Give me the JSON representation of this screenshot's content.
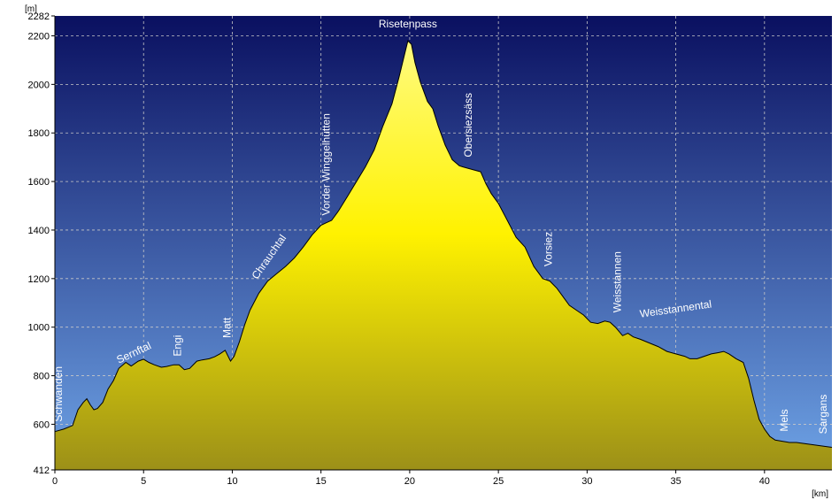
{
  "chart_data": {
    "type": "area",
    "title": "",
    "xlabel": "[km]",
    "ylabel": "[m]",
    "xlim": [
      0,
      43.8
    ],
    "ylim": [
      412,
      2282
    ],
    "x_ticks": [
      0,
      5,
      10,
      15,
      20,
      25,
      30,
      35,
      40
    ],
    "y_ticks": [
      412,
      600,
      800,
      1000,
      1200,
      1400,
      1600,
      1800,
      2000,
      2200,
      2282
    ],
    "grid": true,
    "colors": {
      "sky_top": "#0a1060",
      "sky_bottom": "#6ea3e6",
      "fill_top": "#fffb80",
      "fill_mid": "#fff200",
      "fill_bottom": "#9c9018",
      "line": "#000000"
    },
    "series": [
      {
        "x": [
          0,
          0.5,
          1.0,
          1.3,
          1.6,
          1.8,
          2.0,
          2.2,
          2.4,
          2.7,
          3.0,
          3.3,
          3.6,
          4.0,
          4.3,
          4.7,
          5.0,
          5.3,
          5.6,
          6.0,
          6.3,
          6.7,
          7.0,
          7.3,
          7.6,
          8.0,
          8.3,
          8.7,
          9.0,
          9.3,
          9.6,
          9.9,
          10.1,
          10.4,
          10.7,
          11.0,
          11.5,
          12.0,
          12.5,
          13.0,
          13.5,
          14.0,
          14.5,
          15.0,
          15.3,
          15.6,
          16.0,
          16.5,
          17.0,
          17.5,
          18.0,
          18.5,
          19.0,
          19.4,
          19.7,
          19.9,
          20.1,
          20.3,
          20.6,
          21.0,
          21.3,
          21.6,
          22.0,
          22.4,
          22.8,
          23.0,
          23.5,
          24.0,
          24.3,
          24.6,
          25.0,
          25.5,
          26.0,
          26.5,
          27.0,
          27.5,
          27.9,
          28.3,
          28.7,
          29.0,
          29.4,
          29.8,
          30.2,
          30.6,
          31.0,
          31.3,
          31.6,
          32.0,
          32.3,
          32.6,
          33.0,
          33.5,
          34.0,
          34.5,
          35.0,
          35.5,
          35.8,
          36.2,
          36.6,
          37.0,
          37.4,
          37.7,
          38.0,
          38.4,
          38.8,
          39.1,
          39.4,
          39.7,
          40.0,
          40.3,
          40.6,
          41.0,
          41.4,
          41.8,
          42.3,
          42.8,
          43.3,
          43.8
        ],
        "values": [
          570,
          580,
          595,
          660,
          690,
          705,
          680,
          660,
          665,
          690,
          745,
          780,
          830,
          855,
          840,
          860,
          868,
          855,
          845,
          835,
          838,
          845,
          845,
          825,
          830,
          860,
          865,
          870,
          878,
          890,
          905,
          860,
          880,
          940,
          1010,
          1070,
          1140,
          1190,
          1220,
          1250,
          1285,
          1330,
          1380,
          1420,
          1430,
          1440,
          1480,
          1540,
          1600,
          1660,
          1730,
          1830,
          1920,
          2030,
          2120,
          2180,
          2165,
          2090,
          2010,
          1930,
          1900,
          1830,
          1750,
          1690,
          1665,
          1660,
          1650,
          1640,
          1590,
          1550,
          1510,
          1440,
          1370,
          1330,
          1250,
          1200,
          1190,
          1160,
          1120,
          1090,
          1070,
          1050,
          1020,
          1015,
          1025,
          1020,
          1000,
          965,
          975,
          960,
          950,
          935,
          920,
          900,
          890,
          880,
          870,
          870,
          880,
          890,
          895,
          900,
          890,
          870,
          855,
          790,
          700,
          620,
          580,
          550,
          535,
          530,
          525,
          525,
          520,
          515,
          510,
          505
        ]
      }
    ],
    "labels": [
      {
        "text": "Schwanden",
        "x": 0.4,
        "y": 610,
        "rotate": -90
      },
      {
        "text": "Sernftal",
        "x": 3.6,
        "y": 850,
        "rotate": -25
      },
      {
        "text": "Engi",
        "x": 7.1,
        "y": 880,
        "rotate": -90
      },
      {
        "text": "Matt",
        "x": 9.9,
        "y": 955,
        "rotate": -90
      },
      {
        "text": "Chrauchtal",
        "x": 11.4,
        "y": 1195,
        "rotate": -55
      },
      {
        "text": "Vorder Winggelhütten",
        "x": 15.5,
        "y": 1460,
        "rotate": -90
      },
      {
        "text": "Risetenpass",
        "x": 19.9,
        "y": 2235,
        "rotate": 0
      },
      {
        "text": "Obersiezsäss",
        "x": 23.5,
        "y": 1700,
        "rotate": -90
      },
      {
        "text": "Vorsiez",
        "x": 28.0,
        "y": 1250,
        "rotate": -90
      },
      {
        "text": "Weisstannen",
        "x": 31.9,
        "y": 1060,
        "rotate": -90
      },
      {
        "text": "Weisstannental",
        "x": 33.0,
        "y": 1040,
        "rotate": -8
      },
      {
        "text": "Mels",
        "x": 41.3,
        "y": 570,
        "rotate": -90
      },
      {
        "text": "Sargans",
        "x": 43.5,
        "y": 560,
        "rotate": -90
      }
    ]
  }
}
